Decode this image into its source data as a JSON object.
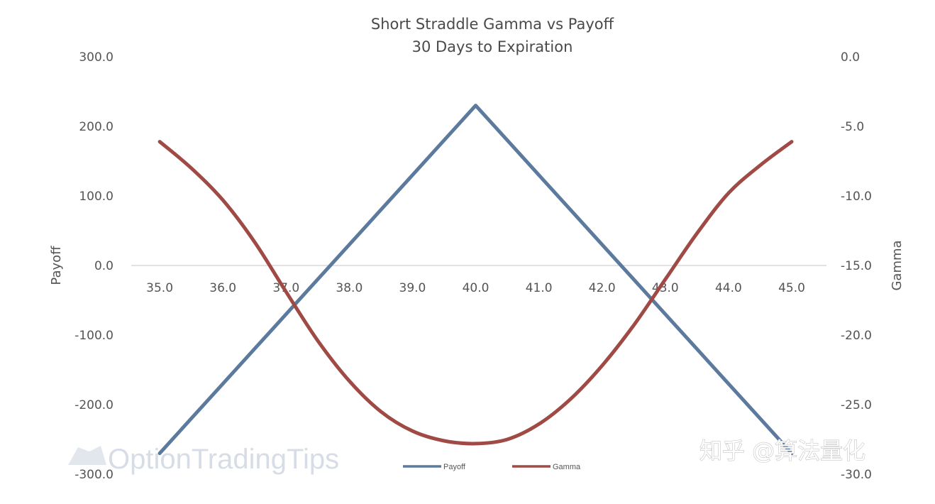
{
  "chart_data": {
    "type": "line",
    "title": "Short Straddle Gamma vs Payoff",
    "subtitle": "30 Days to Expiration",
    "xlabel": "",
    "ylabel": "Payoff",
    "y2label": "Gamma",
    "x": [
      35.0,
      35.5,
      36.0,
      36.5,
      37.0,
      37.5,
      38.0,
      38.5,
      39.0,
      39.5,
      40.0,
      40.5,
      41.0,
      41.5,
      42.0,
      42.5,
      43.0,
      43.5,
      44.0,
      44.5,
      45.0
    ],
    "x_tick_labels": [
      "35.0",
      "36.0",
      "37.0",
      "38.0",
      "39.0",
      "40.0",
      "41.0",
      "42.0",
      "43.0",
      "44.0",
      "45.0"
    ],
    "ylim": [
      -300,
      300
    ],
    "y_tick_labels": [
      "300.0",
      "200.0",
      "100.0",
      "0.0",
      "-100.0",
      "-200.0",
      "-300.0"
    ],
    "y2lim": [
      -30,
      0
    ],
    "y2_tick_labels": [
      "0.0",
      "-5.0",
      "-10.0",
      "-15.0",
      "-20.0",
      "-25.0",
      "-30.0"
    ],
    "grid": false,
    "legend_position": "bottom",
    "series": [
      {
        "name": "Payoff",
        "axis": "left",
        "color": "#5b7a9e",
        "values": [
          -270,
          -220,
          -170,
          -120,
          -70,
          -20,
          30,
          80,
          130,
          180,
          230,
          180,
          130,
          80,
          30,
          -20,
          -70,
          -120,
          -170,
          -220,
          -270
        ]
      },
      {
        "name": "Gamma",
        "axis": "right",
        "color": "#a04a45",
        "values": [
          -6.1,
          -8.0,
          -10.3,
          -13.3,
          -16.9,
          -20.4,
          -23.3,
          -25.5,
          -26.9,
          -27.6,
          -27.8,
          -27.5,
          -26.4,
          -24.6,
          -22.2,
          -19.3,
          -16.0,
          -12.7,
          -9.8,
          -7.8,
          -6.1
        ]
      }
    ]
  },
  "watermarks": {
    "brand": "OptionTradingTips",
    "zhihu": "知乎 @算法量化"
  }
}
